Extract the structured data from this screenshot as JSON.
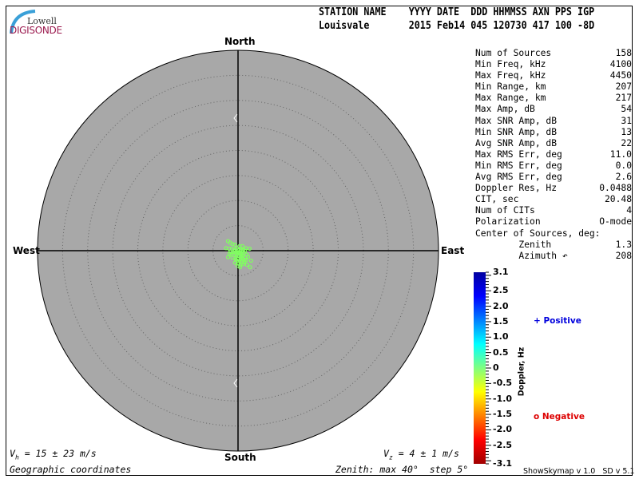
{
  "header": {
    "logo_top": "Lowell",
    "logo_bottom": "DIGISONDE",
    "columns_line": "STATION NAME    YYYY DATE  DDD HHMMSS AXN PPS IGP",
    "values_line": "Louisvale       2015 Feb14 045 120730 417 100 -8D"
  },
  "compass": {
    "north": "North",
    "south": "South",
    "east": "East",
    "west": "West"
  },
  "stats": [
    {
      "label": "Num of Sources",
      "value": "158"
    },
    {
      "label": "Min Freq, kHz",
      "value": "4100"
    },
    {
      "label": "Max Freq, kHz",
      "value": "4450"
    },
    {
      "label": "Min Range, km",
      "value": "207"
    },
    {
      "label": "Max Range, km",
      "value": "217"
    },
    {
      "label": "Max Amp, dB",
      "value": "54"
    },
    {
      "label": "Max SNR Amp, dB",
      "value": "31"
    },
    {
      "label": "Min SNR Amp, dB",
      "value": "13"
    },
    {
      "label": "Avg SNR Amp, dB",
      "value": "22"
    },
    {
      "label": "Max RMS Err, deg",
      "value": "11.0"
    },
    {
      "label": "Min RMS Err, deg",
      "value": "0.0"
    },
    {
      "label": "Avg RMS Err, deg",
      "value": "2.6"
    },
    {
      "label": "Doppler Res, Hz",
      "value": "0.0488"
    },
    {
      "label": "CIT, sec",
      "value": "20.48"
    },
    {
      "label": "Num of CITs",
      "value": "4"
    },
    {
      "label": "Polarization",
      "value": "O-mode"
    },
    {
      "label": "Center of Sources, deg:",
      "value": ""
    },
    {
      "label": "        Zenith",
      "value": "1.3"
    },
    {
      "label": "        Azimuth ↶",
      "value": "208"
    }
  ],
  "colorbar": {
    "title": "Doppler, Hz",
    "ticks": [
      "3.1",
      "2.5",
      "2.0",
      "1.5",
      "1.0",
      "0.5",
      "0",
      "-0.5",
      "-1.0",
      "-1.5",
      "-2.0",
      "-2.5",
      "-3.1"
    ],
    "range": [
      -3.1,
      3.1
    ],
    "colors": [
      "#0000a0",
      "#0000ff",
      "#0080ff",
      "#00ffff",
      "#80ff80",
      "#ffff00",
      "#ff8000",
      "#ff0000",
      "#a00000"
    ]
  },
  "legend": {
    "positive_symbol": "+",
    "positive_label": "Positive",
    "positive_color": "#0000dd",
    "negative_symbol": "o",
    "negative_label": "Negative",
    "negative_color": "#dd0000"
  },
  "footer": {
    "vh": "= 15 ± 23 m/s",
    "vz": "= 4 ± 1 m/s",
    "coords": "Geographic coordinates",
    "zenith": "Zenith: max 40°  step 5°",
    "version": "ShowSkymap v 1.0   SD v 5.1"
  },
  "chart_data": {
    "type": "scatter",
    "coordinate_system": "polar skymap, zenith angle radial",
    "zenith_max_deg": 40,
    "zenith_step_deg": 5,
    "grid": true,
    "background": "#a8a8a8",
    "point_color": "#80ff60",
    "point_symbol": "o",
    "points_east_north_deg": [
      [
        -2.0,
        1.9
      ],
      [
        -1.6,
        1.6
      ],
      [
        -1.1,
        1.3
      ],
      [
        -0.6,
        1.2
      ],
      [
        0.3,
        0.9
      ],
      [
        0.9,
        0.9
      ],
      [
        1.6,
        0.5
      ],
      [
        2.3,
        0.4
      ],
      [
        -2.4,
        0.5
      ],
      [
        -1.8,
        0.4
      ],
      [
        -1.2,
        0.3
      ],
      [
        -0.7,
        0.2
      ],
      [
        -0.3,
        0.5
      ],
      [
        0.1,
        0.1
      ],
      [
        0.5,
        0.2
      ],
      [
        1.0,
        0.1
      ],
      [
        1.4,
        0.0
      ],
      [
        -1.5,
        -0.2
      ],
      [
        -1.0,
        -0.3
      ],
      [
        -0.5,
        -0.4
      ],
      [
        0.0,
        -0.3
      ],
      [
        0.4,
        -0.5
      ],
      [
        0.8,
        -0.6
      ],
      [
        1.2,
        -0.4
      ],
      [
        1.7,
        -0.8
      ],
      [
        -1.3,
        -0.8
      ],
      [
        -0.8,
        -0.9
      ],
      [
        -0.3,
        -1.0
      ],
      [
        0.2,
        -1.1
      ],
      [
        0.6,
        -1.2
      ],
      [
        1.0,
        -1.0
      ],
      [
        1.4,
        -1.3
      ],
      [
        2.0,
        -1.2
      ],
      [
        -2.0,
        -1.3
      ],
      [
        -1.1,
        -1.4
      ],
      [
        -0.5,
        -1.5
      ],
      [
        0.0,
        -1.6
      ],
      [
        0.5,
        -1.7
      ],
      [
        0.9,
        -1.5
      ],
      [
        1.3,
        -1.8
      ],
      [
        -0.2,
        -2.0
      ],
      [
        0.3,
        -2.1
      ],
      [
        0.7,
        -2.2
      ],
      [
        1.2,
        -2.3
      ],
      [
        2.6,
        -2.0
      ],
      [
        -0.6,
        -2.4
      ],
      [
        0.1,
        -2.6
      ],
      [
        0.5,
        -2.8
      ],
      [
        1.0,
        -2.7
      ],
      [
        1.8,
        -2.8
      ],
      [
        -0.1,
        -3.0
      ],
      [
        0.4,
        -3.3
      ],
      [
        2.4,
        -3.3
      ],
      [
        -0.8,
        -0.1
      ],
      [
        -0.2,
        -0.7
      ],
      [
        0.7,
        -0.1
      ],
      [
        -1.7,
        -0.6
      ],
      [
        1.6,
        -1.9
      ],
      [
        0.2,
        -0.4
      ],
      [
        -0.4,
        -1.8
      ]
    ]
  }
}
